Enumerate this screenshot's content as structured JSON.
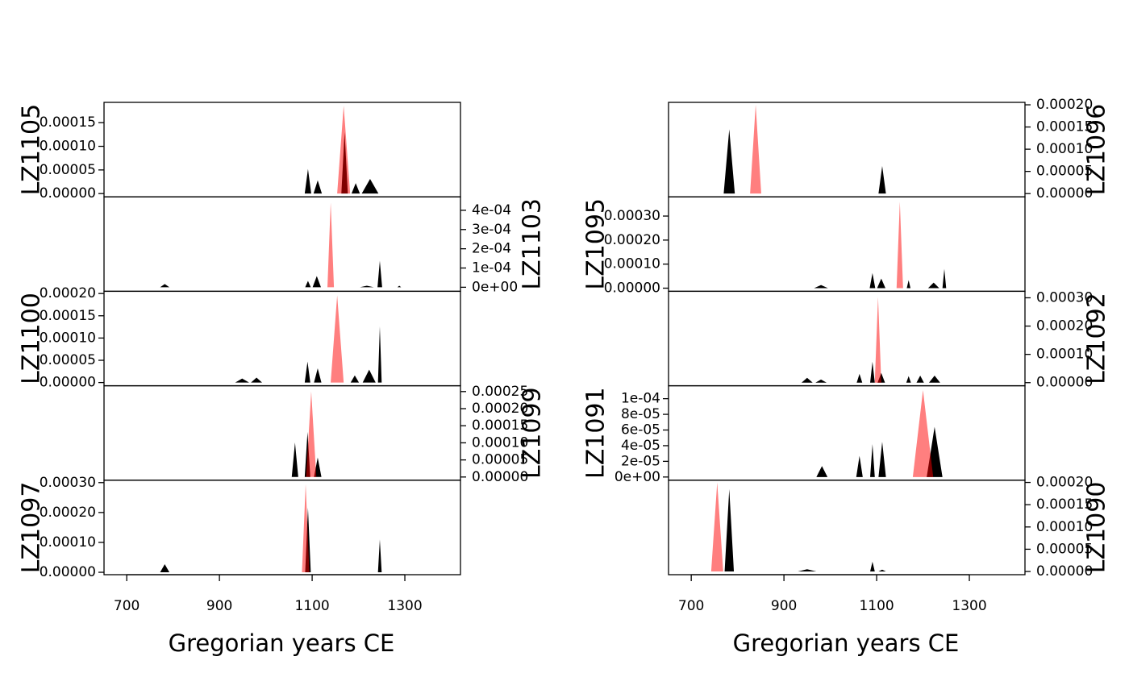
{
  "chart_data": [
    {
      "type": "area",
      "title": "LZ1105",
      "yaxis_side": "left",
      "xlim": [
        651,
        1420
      ],
      "ylim": [
        -6.9e-06,
        0.000193
      ],
      "yticks": [
        {
          "value": 0,
          "label": "0.00000"
        },
        {
          "value": 5e-05,
          "label": "0.00005"
        },
        {
          "value": 0.0001,
          "label": "0.00010"
        },
        {
          "value": 0.00015,
          "label": "0.00015"
        }
      ],
      "series": [
        {
          "color": "#000000",
          "opacity": 1,
          "x": [
            1084,
            1091,
            1098,
            1103,
            1112,
            1121,
            1163,
            1170,
            1177,
            1185,
            1194,
            1203,
            1207,
            1225,
            1243
          ],
          "values": [
            0,
            5.2e-05,
            0,
            0,
            2.8e-05,
            0,
            0,
            0.00013,
            0,
            0,
            2.2e-05,
            0,
            0,
            3.1e-05,
            0
          ]
        },
        {
          "color": "#ff0000",
          "opacity": 0.5,
          "x": [
            1154,
            1168,
            1182
          ],
          "values": [
            0,
            0.000186,
            0
          ]
        }
      ]
    },
    {
      "type": "area",
      "title": "LZ1103",
      "yaxis_side": "right",
      "xlim": [
        651,
        1420
      ],
      "ylim": [
        -2.1e-05,
        0.00047
      ],
      "yticks": [
        {
          "value": 0,
          "label": "0e+00"
        },
        {
          "value": 0.0001,
          "label": "1e-04"
        },
        {
          "value": 0.0002,
          "label": "2e-04"
        },
        {
          "value": 0.0003,
          "label": "3e-04"
        },
        {
          "value": 0.0004,
          "label": "4e-04"
        }
      ],
      "series": [
        {
          "color": "#000000",
          "opacity": 1,
          "x": [
            772,
            782,
            792,
            1085,
            1091,
            1097,
            1101,
            1110,
            1119,
            1203,
            1218,
            1233,
            1241,
            1246,
            1251,
            1284,
            1288,
            1292
          ],
          "values": [
            0,
            1.7e-05,
            0,
            0,
            3.3e-05,
            0,
            0,
            5.8e-05,
            0,
            0,
            8e-06,
            0,
            0,
            0.000138,
            0,
            0,
            8e-06,
            0
          ]
        },
        {
          "color": "#ff0000",
          "opacity": 0.5,
          "x": [
            1133,
            1140,
            1147
          ],
          "values": [
            0,
            0.00044,
            0
          ]
        }
      ]
    },
    {
      "type": "area",
      "title": "LZ1100",
      "yaxis_side": "left",
      "xlim": [
        651,
        1420
      ],
      "ylim": [
        -7.2e-06,
        0.000205
      ],
      "yticks": [
        {
          "value": 0,
          "label": "0.00000"
        },
        {
          "value": 5e-05,
          "label": "0.00005"
        },
        {
          "value": 0.0001,
          "label": "0.00010"
        },
        {
          "value": 0.00015,
          "label": "0.00015"
        },
        {
          "value": 0.0002,
          "label": "0.00020"
        }
      ],
      "series": [
        {
          "color": "#000000",
          "opacity": 1,
          "x": [
            934,
            949,
            964,
            968,
            980,
            992,
            1084,
            1090,
            1096,
            1104,
            1112,
            1120,
            1183,
            1192,
            1201,
            1209,
            1223,
            1237,
            1242,
            1246,
            1250
          ],
          "values": [
            0,
            9e-06,
            0,
            0,
            1.1e-05,
            0,
            0,
            4.7e-05,
            0,
            0,
            3.2e-05,
            0,
            0,
            1.6e-05,
            0,
            0,
            2.9e-05,
            0,
            0,
            0.000126,
            0
          ]
        },
        {
          "color": "#ff0000",
          "opacity": 0.5,
          "x": [
            1140,
            1154,
            1168
          ],
          "values": [
            0,
            0.000196,
            0
          ]
        }
      ]
    },
    {
      "type": "area",
      "title": "LZ1099",
      "yaxis_side": "right",
      "xlim": [
        651,
        1420
      ],
      "ylim": [
        -9.4e-06,
        0.000267
      ],
      "yticks": [
        {
          "value": 0,
          "label": "0.00000"
        },
        {
          "value": 5e-05,
          "label": "0.00005"
        },
        {
          "value": 0.0001,
          "label": "0.00010"
        },
        {
          "value": 0.00015,
          "label": "0.00015"
        },
        {
          "value": 0.0002,
          "label": "0.00020"
        },
        {
          "value": 0.00025,
          "label": "0.00025"
        }
      ],
      "series": [
        {
          "color": "#000000",
          "opacity": 1,
          "x": [
            1056,
            1063,
            1070,
            1084,
            1090,
            1096,
            1104,
            1112,
            1120
          ],
          "values": [
            0,
            0.000101,
            0,
            0,
            0.000132,
            0,
            0,
            5.7e-05,
            0
          ]
        },
        {
          "color": "#ff0000",
          "opacity": 0.5,
          "x": [
            1087,
            1098,
            1109
          ],
          "values": [
            0,
            0.00025,
            0
          ]
        }
      ]
    },
    {
      "type": "area",
      "title": "LZ1097",
      "yaxis_side": "left",
      "xlim": [
        651,
        1420
      ],
      "ylim": [
        -8e-06,
        0.000308
      ],
      "yticks": [
        {
          "value": 0,
          "label": "0.00000"
        },
        {
          "value": 0.0001,
          "label": "0.00010"
        },
        {
          "value": 0.0002,
          "label": "0.00020"
        },
        {
          "value": 0.0003,
          "label": "0.00030"
        }
      ],
      "xticks": [
        700,
        900,
        1100,
        1300
      ],
      "xlabel": "Gregorian years CE",
      "series": [
        {
          "color": "#000000",
          "opacity": 1,
          "x": [
            772,
            782,
            792,
            1085,
            1091,
            1097,
            1242,
            1246,
            1250
          ],
          "values": [
            0,
            2.7e-05,
            0,
            0,
            0.000216,
            0,
            0,
            0.00011,
            0
          ]
        },
        {
          "color": "#ff0000",
          "opacity": 0.5,
          "x": [
            1078,
            1086,
            1094
          ],
          "values": [
            0,
            0.000295,
            0
          ]
        }
      ]
    },
    {
      "type": "area",
      "title": "LZ1096",
      "yaxis_side": "right",
      "xlim": [
        651,
        1420
      ],
      "ylim": [
        -7.3e-06,
        0.0002055
      ],
      "yticks": [
        {
          "value": 0,
          "label": "0.00000"
        },
        {
          "value": 5e-05,
          "label": "0.00005"
        },
        {
          "value": 0.0001,
          "label": "0.00010"
        },
        {
          "value": 0.00015,
          "label": "0.00015"
        },
        {
          "value": 0.0002,
          "label": "0.00020"
        }
      ],
      "series": [
        {
          "color": "#000000",
          "opacity": 1,
          "x": [
            770,
            782,
            794,
            1104,
            1112,
            1120
          ],
          "values": [
            0,
            0.000145,
            0,
            0,
            6.2e-05,
            0
          ]
        },
        {
          "color": "#ff0000",
          "opacity": 0.5,
          "x": [
            827,
            839,
            851
          ],
          "values": [
            0,
            0.0002,
            0
          ]
        }
      ]
    },
    {
      "type": "area",
      "title": "LZ1095",
      "yaxis_side": "left",
      "xlim": [
        651,
        1420
      ],
      "ylim": [
        -1.3e-05,
        0.00038
      ],
      "yticks": [
        {
          "value": 0,
          "label": "0.00000"
        },
        {
          "value": 0.0001,
          "label": "0.00010"
        },
        {
          "value": 0.0002,
          "label": "0.00020"
        },
        {
          "value": 0.0003,
          "label": "0.00030"
        }
      ],
      "series": [
        {
          "color": "#000000",
          "opacity": 1,
          "x": [
            965,
            980,
            995,
            1085,
            1091,
            1097,
            1101,
            1110,
            1119,
            1165,
            1169,
            1173,
            1211,
            1223,
            1235,
            1242,
            1246,
            1250
          ],
          "values": [
            0,
            1.3e-05,
            0,
            0,
            6.3e-05,
            0,
            0,
            4e-05,
            0,
            0,
            3.3e-05,
            0,
            0,
            2.3e-05,
            0,
            0,
            8e-05,
            0
          ]
        },
        {
          "color": "#ff0000",
          "opacity": 0.5,
          "x": [
            1143,
            1150,
            1157
          ],
          "values": [
            0,
            0.00036,
            0
          ]
        }
      ]
    },
    {
      "type": "area",
      "title": "LZ1092",
      "yaxis_side": "right",
      "xlim": [
        651,
        1420
      ],
      "ylim": [
        -1.1e-05,
        0.000323
      ],
      "yticks": [
        {
          "value": 0,
          "label": "0.00000"
        },
        {
          "value": 0.0001,
          "label": "0.00010"
        },
        {
          "value": 0.0002,
          "label": "0.00020"
        },
        {
          "value": 0.0003,
          "label": "0.00030"
        }
      ],
      "series": [
        {
          "color": "#000000",
          "opacity": 1,
          "x": [
            938,
            950,
            962,
            968,
            980,
            992,
            1057,
            1063,
            1069,
            1086,
            1091,
            1096,
            1102,
            1110,
            1118,
            1164,
            1169,
            1174,
            1186,
            1194,
            1202,
            1213,
            1225,
            1237
          ],
          "values": [
            0,
            1.7e-05,
            0,
            0,
            1.1e-05,
            0,
            0,
            3.1e-05,
            0,
            0,
            7.4e-05,
            0,
            0,
            3.4e-05,
            0,
            0,
            2.3e-05,
            0,
            0,
            2.5e-05,
            0,
            0,
            2.5e-05,
            0
          ]
        },
        {
          "color": "#ff0000",
          "opacity": 0.5,
          "x": [
            1096,
            1103,
            1110
          ],
          "values": [
            0,
            0.000303,
            0
          ]
        }
      ]
    },
    {
      "type": "area",
      "title": "LZ1091",
      "yaxis_side": "left",
      "xlim": [
        651,
        1420
      ],
      "ylim": [
        -4.1e-06,
        0.0001165
      ],
      "yticks": [
        {
          "value": 0,
          "label": "0e+00"
        },
        {
          "value": 2e-05,
          "label": "2e-05"
        },
        {
          "value": 4e-05,
          "label": "4e-05"
        },
        {
          "value": 6e-05,
          "label": "6e-05"
        },
        {
          "value": 8e-05,
          "label": "8e-05"
        },
        {
          "value": 0.0001,
          "label": "1e-04"
        }
      ],
      "series": [
        {
          "color": "#000000",
          "opacity": 1,
          "x": [
            970,
            982,
            994,
            1056,
            1063,
            1070,
            1086,
            1091,
            1096,
            1104,
            1112,
            1120,
            1208,
            1225,
            1242
          ],
          "values": [
            0,
            1.4e-05,
            0,
            0,
            2.7e-05,
            0,
            0,
            4.2e-05,
            0,
            0,
            4.5e-05,
            0,
            0,
            6.4e-05,
            0
          ]
        },
        {
          "color": "#ff0000",
          "opacity": 0.5,
          "x": [
            1178,
            1200,
            1222
          ],
          "values": [
            0,
            0.000111,
            0
          ]
        }
      ]
    },
    {
      "type": "area",
      "title": "LZ1090",
      "yaxis_side": "right",
      "xlim": [
        651,
        1420
      ],
      "ylim": [
        -7.2e-06,
        0.000205
      ],
      "yticks": [
        {
          "value": 0,
          "label": "0.00000"
        },
        {
          "value": 5e-05,
          "label": "0.00005"
        },
        {
          "value": 0.0001,
          "label": "0.00010"
        },
        {
          "value": 0.00015,
          "label": "0.00015"
        },
        {
          "value": 0.0002,
          "label": "0.00020"
        }
      ],
      "xticks": [
        700,
        900,
        1100,
        1300
      ],
      "xlabel": "Gregorian years CE",
      "series": [
        {
          "color": "#000000",
          "opacity": 1,
          "x": [
            772,
            782,
            792,
            930,
            950,
            970,
            1086,
            1091,
            1096,
            1104,
            1112,
            1120
          ],
          "values": [
            0,
            0.000185,
            0,
            0,
            5e-06,
            0,
            0,
            2.2e-05,
            0,
            0,
            4e-06,
            0
          ]
        },
        {
          "color": "#ff0000",
          "opacity": 0.5,
          "x": [
            743,
            756,
            769
          ],
          "values": [
            0,
            0.0002,
            0
          ]
        }
      ]
    }
  ]
}
